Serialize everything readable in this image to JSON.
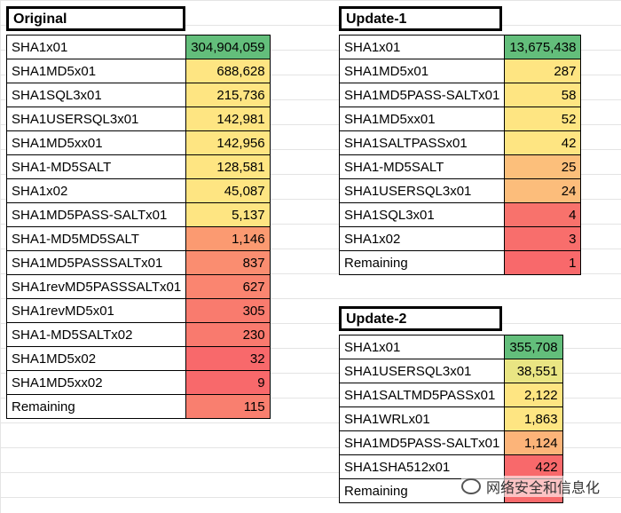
{
  "original": {
    "title": "Original",
    "rows": [
      {
        "name": "SHA1x01",
        "value": "304,904,059",
        "color": "#63be7b"
      },
      {
        "name": "SHA1MD5x01",
        "value": "688,628",
        "color": "#fee582"
      },
      {
        "name": "SHA1SQL3x01",
        "value": "215,736",
        "color": "#fee582"
      },
      {
        "name": "SHA1USERSQL3x01",
        "value": "142,981",
        "color": "#fee582"
      },
      {
        "name": "SHA1MD5xx01",
        "value": "142,956",
        "color": "#fee582"
      },
      {
        "name": "SHA1-MD5SALT",
        "value": "128,581",
        "color": "#fee582"
      },
      {
        "name": "SHA1x02",
        "value": "45,087",
        "color": "#fee582"
      },
      {
        "name": "SHA1MD5PASS-SALTx01",
        "value": "5,137",
        "color": "#fee582"
      },
      {
        "name": "SHA1-MD5MD5SALT",
        "value": "1,146",
        "color": "#fb9a71"
      },
      {
        "name": "SHA1MD5PASSSALTx01",
        "value": "837",
        "color": "#fa8d70"
      },
      {
        "name": "SHA1revMD5PASSSALTx01",
        "value": "627",
        "color": "#fa8570"
      },
      {
        "name": "SHA1revMD5x01",
        "value": "305",
        "color": "#f97b6e"
      },
      {
        "name": "SHA1-MD5SALTx02",
        "value": "230",
        "color": "#f97a6e"
      },
      {
        "name": "SHA1MD5x02",
        "value": "32",
        "color": "#f8696b"
      },
      {
        "name": "SHA1MD5xx02",
        "value": "9",
        "color": "#f8696b"
      },
      {
        "name": "Remaining",
        "value": "115",
        "color": "#f97f6f"
      }
    ]
  },
  "update1": {
    "title": "Update-1",
    "rows": [
      {
        "name": "SHA1x01",
        "value": "13,675,438",
        "color": "#63be7b"
      },
      {
        "name": "SHA1MD5x01",
        "value": "287",
        "color": "#fee582"
      },
      {
        "name": "SHA1MD5PASS-SALTx01",
        "value": "58",
        "color": "#fee582"
      },
      {
        "name": "SHA1MD5xx01",
        "value": "52",
        "color": "#fee582"
      },
      {
        "name": "SHA1SALTPASSx01",
        "value": "42",
        "color": "#fee582"
      },
      {
        "name": "SHA1-MD5SALT",
        "value": "25",
        "color": "#fcbf7b"
      },
      {
        "name": "SHA1USERSQL3x01",
        "value": "24",
        "color": "#fcbd7b"
      },
      {
        "name": "SHA1SQL3x01",
        "value": "4",
        "color": "#f8726c"
      },
      {
        "name": "SHA1x02",
        "value": "3",
        "color": "#f86e6c"
      },
      {
        "name": "Remaining",
        "value": "1",
        "color": "#f8696b"
      }
    ]
  },
  "update2": {
    "title": "Update-2",
    "rows": [
      {
        "name": "SHA1x01",
        "value": "355,708",
        "color": "#63be7b"
      },
      {
        "name": "SHA1USERSQL3x01",
        "value": "38,551",
        "color": "#e9e583"
      },
      {
        "name": "SHA1SALTMD5PASSx01",
        "value": "2,122",
        "color": "#fee582"
      },
      {
        "name": "SHA1WRLx01",
        "value": "1,863",
        "color": "#fee582"
      },
      {
        "name": "SHA1MD5PASS-SALTx01",
        "value": "1,124",
        "color": "#fcb479"
      },
      {
        "name": "SHA1SHA512x01",
        "value": "422",
        "color": "#f8696b"
      },
      {
        "name": "Remaining",
        "value": "-",
        "color": "#f8696b"
      }
    ]
  },
  "watermark": {
    "text": "网络安全和信息化"
  }
}
